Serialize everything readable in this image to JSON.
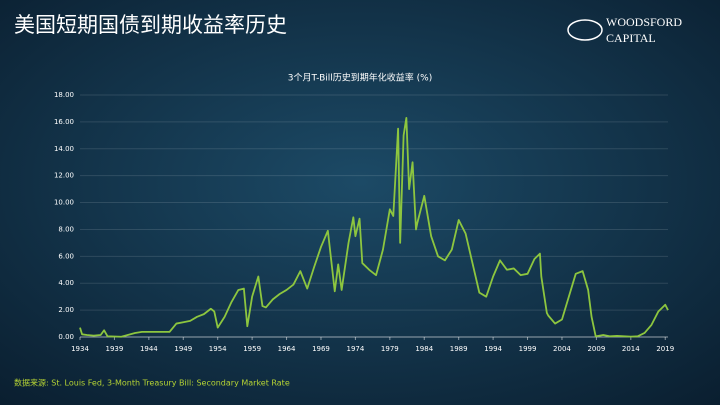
{
  "slide_title": "美国短期国债到期收益率历史",
  "logo": [
    "WOODSFORD",
    "CAPITAL"
  ],
  "source": "数据来源:  St. Louis Fed, 3-Month Treasury Bill: Secondary Market Rate",
  "chart_data": {
    "type": "line",
    "title": "3个月T-Bill历史到期年化收益率 (%)",
    "x": [
      1934,
      1934.3,
      1935,
      1936,
      1937,
      1937.5,
      1938,
      1940,
      1942,
      1943,
      1947,
      1948,
      1949,
      1950,
      1951,
      1952,
      1953,
      1953.5,
      1954,
      1955,
      1956,
      1957,
      1957.8,
      1958.3,
      1959,
      1959.9,
      1960.5,
      1961,
      1962,
      1963,
      1964,
      1965,
      1966,
      1967,
      1968,
      1969,
      1970,
      1971,
      1971.5,
      1972,
      1973,
      1973.7,
      1974,
      1974.6,
      1975,
      1976,
      1977,
      1978,
      1979,
      1979.5,
      1980.2,
      1980.5,
      1981,
      1981.4,
      1981.8,
      1982.3,
      1982.8,
      1983,
      1984,
      1985,
      1986,
      1987,
      1988,
      1989,
      1990,
      1991,
      1992,
      1993,
      1994,
      1995,
      1996,
      1997,
      1998,
      1999,
      2000,
      2000.8,
      2001,
      2001.8,
      2002,
      2003,
      2004,
      2005,
      2006,
      2007,
      2007.8,
      2008.3,
      2008.9,
      2010,
      2011,
      2012,
      2014,
      2015,
      2016,
      2017,
      2018,
      2019,
      2019.4
    ],
    "values": [
      0.7,
      0.2,
      0.15,
      0.1,
      0.15,
      0.5,
      0.05,
      0.02,
      0.3,
      0.38,
      0.38,
      1.0,
      1.1,
      1.2,
      1.5,
      1.7,
      2.1,
      1.9,
      0.7,
      1.5,
      2.6,
      3.5,
      3.6,
      0.8,
      3.0,
      4.5,
      2.3,
      2.2,
      2.8,
      3.2,
      3.5,
      3.9,
      4.9,
      3.6,
      5.2,
      6.7,
      7.9,
      3.4,
      5.4,
      3.5,
      7.0,
      8.9,
      7.5,
      8.8,
      5.5,
      5.0,
      4.6,
      6.5,
      9.5,
      9.0,
      15.5,
      7.0,
      15.0,
      16.3,
      11.0,
      13.0,
      8.0,
      8.5,
      10.5,
      7.5,
      6.0,
      5.7,
      6.5,
      8.7,
      7.7,
      5.5,
      3.3,
      3.0,
      4.5,
      5.7,
      5.0,
      5.1,
      4.6,
      4.7,
      5.8,
      6.2,
      4.5,
      1.8,
      1.6,
      1.0,
      1.3,
      3.0,
      4.7,
      4.9,
      3.5,
      1.5,
      0.05,
      0.15,
      0.05,
      0.08,
      0.03,
      0.05,
      0.3,
      0.9,
      1.9,
      2.4,
      2.0
    ],
    "color": "#8dc63f",
    "xlim": [
      1934,
      2019.4
    ],
    "xticks": [
      1934,
      1939,
      1944,
      1949,
      1954,
      1959,
      1964,
      1969,
      1974,
      1979,
      1984,
      1989,
      1994,
      1999,
      2004,
      2009,
      2014,
      2019
    ],
    "ylim": [
      0,
      18
    ],
    "yticks": [
      {
        "value": 0,
        "label": "0.00"
      },
      {
        "value": 2,
        "label": "2.00"
      },
      {
        "value": 4,
        "label": "4.00"
      },
      {
        "value": 6,
        "label": "6.00"
      },
      {
        "value": 8,
        "label": "8.00"
      },
      {
        "value": 10,
        "label": "10.00"
      },
      {
        "value": 12,
        "label": "12.00"
      },
      {
        "value": 14,
        "label": "14.00"
      },
      {
        "value": 16,
        "label": "16.00"
      },
      {
        "value": 18,
        "label": "18.00"
      }
    ],
    "grid": true
  }
}
